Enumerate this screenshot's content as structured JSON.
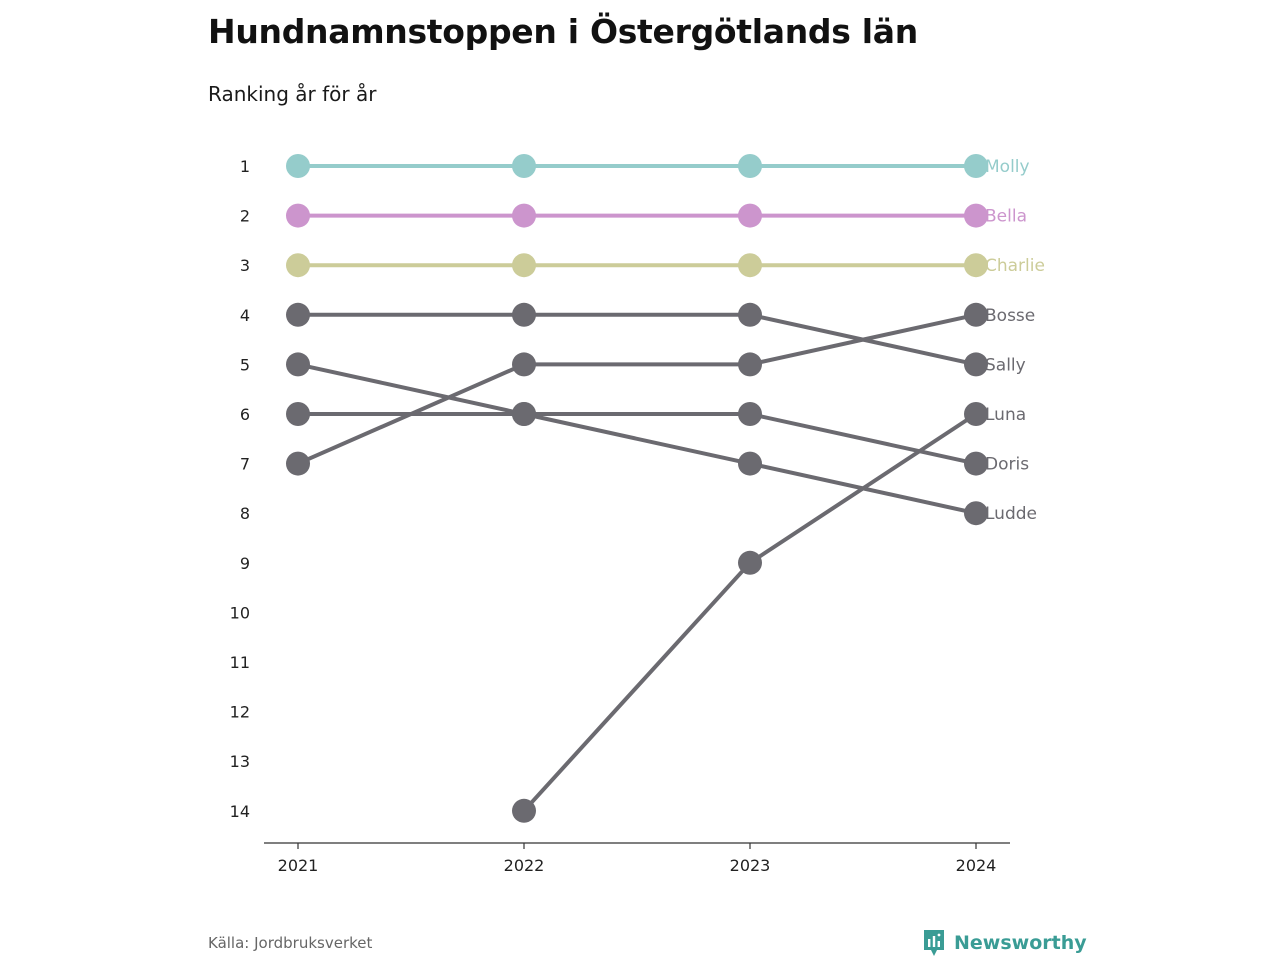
{
  "title": "Hundnamnstoppen i Östergötlands län",
  "subtitle": "Ranking år för år",
  "source": "Källa: Jordbruksverket",
  "brand": {
    "name": "Newsworthy",
    "icon": "newsworthy-logo-icon",
    "color": "#3a9c95"
  },
  "chart_data": {
    "type": "line",
    "title": "Hundnamnstoppen i Östergötlands län",
    "subtitle": "Ranking år för år",
    "x": [
      "2021",
      "2022",
      "2023",
      "2024"
    ],
    "y_ticks": [
      "1",
      "2",
      "3",
      "4",
      "5",
      "6",
      "7",
      "8",
      "9",
      "10",
      "11",
      "12",
      "13",
      "14"
    ],
    "ylim": [
      1,
      14
    ],
    "y_reversed": true,
    "grid": false,
    "legend": "direct labels at right end of lines",
    "series": [
      {
        "name": "Molly",
        "values": [
          1,
          1,
          1,
          1
        ],
        "color": "#95cccb"
      },
      {
        "name": "Bella",
        "values": [
          2,
          2,
          2,
          2
        ],
        "color": "#cc95cd"
      },
      {
        "name": "Charlie",
        "values": [
          3,
          3,
          3,
          3
        ],
        "color": "#cccc99"
      },
      {
        "name": "Bosse",
        "values": [
          7,
          5,
          5,
          4
        ],
        "color": "#6b6a70"
      },
      {
        "name": "Sally",
        "values": [
          4,
          4,
          4,
          5
        ],
        "color": "#6b6a70"
      },
      {
        "name": "Luna",
        "values": [
          null,
          14,
          9,
          6
        ],
        "color": "#6b6a70"
      },
      {
        "name": "Doris",
        "values": [
          6,
          6,
          6,
          7
        ],
        "color": "#6b6a70"
      },
      {
        "name": "Ludde",
        "values": [
          5,
          6,
          7,
          8
        ],
        "color": "#6b6a70"
      }
    ]
  }
}
